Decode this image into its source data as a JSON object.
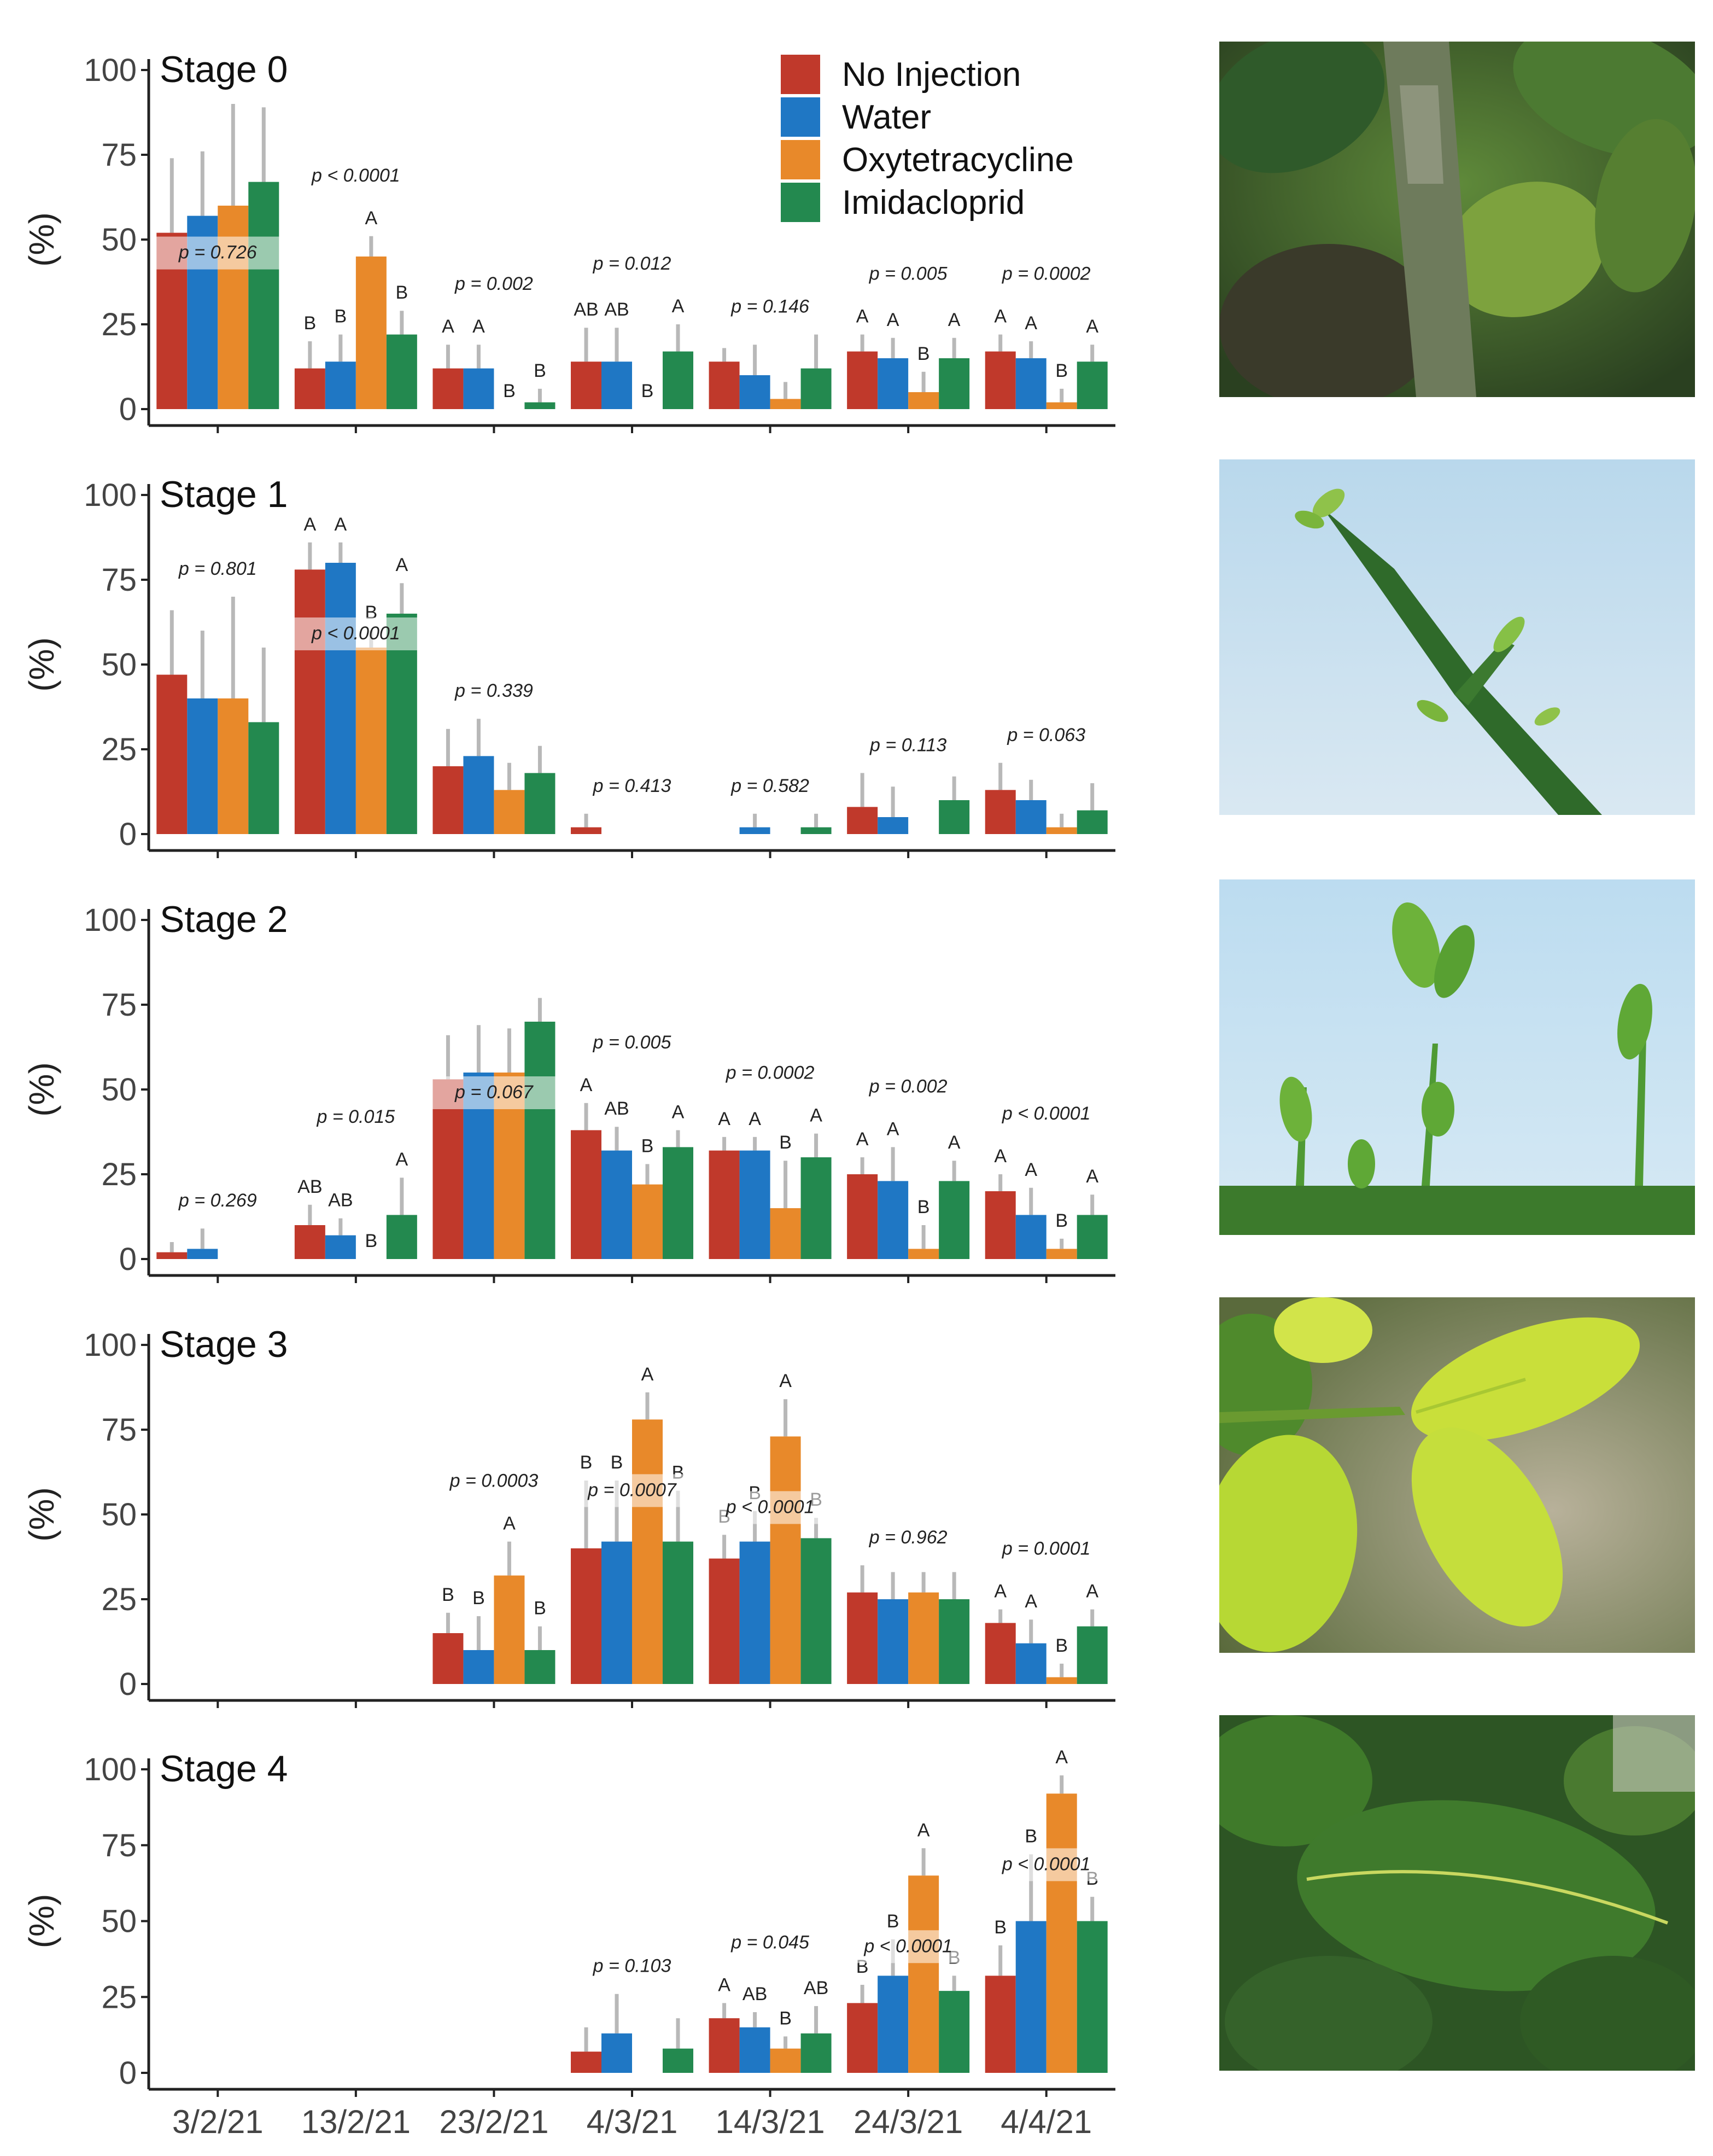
{
  "figure": {
    "ylabel": "(%)",
    "y_ticks": [
      "0",
      "25",
      "50",
      "75",
      "100"
    ],
    "dates": [
      "3/2/21",
      "13/2/21",
      "23/2/21",
      "4/3/21",
      "14/3/21",
      "24/3/21",
      "4/4/21"
    ]
  },
  "legend": [
    {
      "label": "No Injection",
      "color": "#c0392b"
    },
    {
      "label": "Water",
      "color": "#1f77c4"
    },
    {
      "label": "Oxytetracycline",
      "color": "#e8892a"
    },
    {
      "label": "Imidacloprid",
      "color": "#23894f"
    }
  ],
  "chart_data": [
    {
      "type": "bar",
      "title": "Stage 0",
      "ylabel": "(%)",
      "ylim": [
        0,
        100
      ],
      "categories": [
        "3/2/21",
        "13/2/21",
        "23/2/21",
        "4/3/21",
        "14/3/21",
        "24/3/21",
        "4/4/21"
      ],
      "series": [
        {
          "name": "No Injection",
          "values": [
            52,
            12,
            12,
            14,
            14,
            17,
            17
          ],
          "errors": [
            74,
            20,
            19,
            24,
            18,
            22,
            22
          ]
        },
        {
          "name": "Water",
          "values": [
            57,
            14,
            12,
            14,
            10,
            15,
            15
          ],
          "errors": [
            76,
            22,
            19,
            24,
            19,
            21,
            20
          ]
        },
        {
          "name": "Oxytetracycline",
          "values": [
            60,
            45,
            0,
            0,
            3,
            5,
            2
          ],
          "errors": [
            90,
            51,
            0,
            0,
            8,
            11,
            6
          ]
        },
        {
          "name": "Imidacloprid",
          "values": [
            67,
            22,
            2,
            17,
            12,
            15,
            14
          ],
          "errors": [
            89,
            29,
            6,
            25,
            22,
            21,
            19
          ]
        }
      ],
      "pvalues": [
        "p = 0.726",
        "p < 0.0001",
        "p = 0.002",
        "p = 0.012",
        "p = 0.146",
        "p = 0.005",
        "p = 0.0002"
      ],
      "letters": [
        [
          "",
          "",
          "",
          ""
        ],
        [
          "B",
          "B",
          "A",
          "B"
        ],
        [
          "A",
          "A",
          "B",
          "B"
        ],
        [
          "AB",
          "AB",
          "B",
          "A"
        ],
        [
          "",
          "",
          "",
          ""
        ],
        [
          "A",
          "A",
          "B",
          "A"
        ],
        [
          "A",
          "A",
          "B",
          "A"
        ]
      ]
    },
    {
      "type": "bar",
      "title": "Stage 1",
      "ylabel": "(%)",
      "ylim": [
        0,
        100
      ],
      "categories": [
        "3/2/21",
        "13/2/21",
        "23/2/21",
        "4/3/21",
        "14/3/21",
        "24/3/21",
        "4/4/21"
      ],
      "series": [
        {
          "name": "No Injection",
          "values": [
            47,
            78,
            20,
            2,
            0,
            8,
            13
          ],
          "errors": [
            66,
            86,
            31,
            6,
            0,
            18,
            21
          ]
        },
        {
          "name": "Water",
          "values": [
            40,
            80,
            23,
            0,
            2,
            5,
            10
          ],
          "errors": [
            60,
            86,
            34,
            0,
            6,
            14,
            16
          ]
        },
        {
          "name": "Oxytetracycline",
          "values": [
            40,
            55,
            13,
            0,
            0,
            0,
            2
          ],
          "errors": [
            70,
            60,
            21,
            0,
            0,
            0,
            6
          ]
        },
        {
          "name": "Imidacloprid",
          "values": [
            33,
            65,
            18,
            0,
            2,
            10,
            7
          ],
          "errors": [
            55,
            74,
            26,
            0,
            6,
            17,
            15
          ]
        }
      ],
      "pvalues": [
        "p = 0.801",
        "p < 0.0001",
        "p = 0.339",
        "p = 0.413",
        "p = 0.582",
        "p = 0.113",
        "p = 0.063"
      ],
      "letters": [
        [
          "",
          "",
          "",
          ""
        ],
        [
          "A",
          "A",
          "B",
          "A"
        ],
        [
          "",
          "",
          "",
          ""
        ],
        [
          "",
          "",
          "",
          ""
        ],
        [
          "",
          "",
          "",
          ""
        ],
        [
          "",
          "",
          "",
          ""
        ],
        [
          "",
          "",
          "",
          ""
        ]
      ]
    },
    {
      "type": "bar",
      "title": "Stage 2",
      "ylabel": "(%)",
      "ylim": [
        0,
        100
      ],
      "categories": [
        "3/2/21",
        "13/2/21",
        "23/2/21",
        "4/3/21",
        "14/3/21",
        "24/3/21",
        "4/4/21"
      ],
      "series": [
        {
          "name": "No Injection",
          "values": [
            2,
            10,
            53,
            38,
            32,
            25,
            20
          ],
          "errors": [
            5,
            16,
            66,
            46,
            36,
            30,
            25
          ]
        },
        {
          "name": "Water",
          "values": [
            3,
            7,
            55,
            32,
            32,
            23,
            13
          ],
          "errors": [
            9,
            12,
            69,
            39,
            36,
            33,
            21
          ]
        },
        {
          "name": "Oxytetracycline",
          "values": [
            0,
            0,
            55,
            22,
            15,
            3,
            3
          ],
          "errors": [
            0,
            0,
            68,
            28,
            29,
            10,
            6
          ]
        },
        {
          "name": "Imidacloprid",
          "values": [
            0,
            13,
            70,
            33,
            30,
            23,
            13
          ],
          "errors": [
            0,
            24,
            77,
            38,
            37,
            29,
            19
          ]
        }
      ],
      "pvalues": [
        "p = 0.269",
        "p = 0.015",
        "p = 0.067",
        "p = 0.005",
        "p = 0.0002",
        "p = 0.002",
        "p < 0.0001"
      ],
      "letters": [
        [
          "",
          "",
          "",
          ""
        ],
        [
          "AB",
          "AB",
          "B",
          "A"
        ],
        [
          "",
          "",
          "",
          ""
        ],
        [
          "A",
          "AB",
          "B",
          "A"
        ],
        [
          "A",
          "A",
          "B",
          "A"
        ],
        [
          "A",
          "A",
          "B",
          "A"
        ],
        [
          "A",
          "A",
          "B",
          "A"
        ]
      ]
    },
    {
      "type": "bar",
      "title": "Stage 3",
      "ylabel": "(%)",
      "ylim": [
        0,
        100
      ],
      "categories": [
        "3/2/21",
        "13/2/21",
        "23/2/21",
        "4/3/21",
        "14/3/21",
        "24/3/21",
        "4/4/21"
      ],
      "series": [
        {
          "name": "No Injection",
          "values": [
            0,
            0,
            15,
            40,
            37,
            27,
            18
          ],
          "errors": [
            0,
            0,
            21,
            60,
            44,
            35,
            22
          ]
        },
        {
          "name": "Water",
          "values": [
            0,
            0,
            10,
            42,
            42,
            25,
            12
          ],
          "errors": [
            0,
            0,
            20,
            60,
            51,
            33,
            19
          ]
        },
        {
          "name": "Oxytetracycline",
          "values": [
            0,
            0,
            32,
            78,
            73,
            27,
            2
          ],
          "errors": [
            0,
            0,
            42,
            86,
            84,
            33,
            6
          ]
        },
        {
          "name": "Imidacloprid",
          "values": [
            0,
            0,
            10,
            42,
            43,
            25,
            17
          ],
          "errors": [
            0,
            0,
            17,
            57,
            49,
            33,
            22
          ]
        }
      ],
      "pvalues": [
        "",
        "",
        "p = 0.0003",
        "p = 0.0007",
        "p < 0.0001",
        "p = 0.962",
        "p = 0.0001"
      ],
      "letters": [
        [
          "",
          "",
          "",
          ""
        ],
        [
          "",
          "",
          "",
          ""
        ],
        [
          "B",
          "B",
          "A",
          "B"
        ],
        [
          "B",
          "B",
          "A",
          "B"
        ],
        [
          "B",
          "B",
          "A",
          "B"
        ],
        [
          "",
          "",
          "",
          ""
        ],
        [
          "A",
          "A",
          "B",
          "A"
        ]
      ]
    },
    {
      "type": "bar",
      "title": "Stage 4",
      "ylabel": "(%)",
      "ylim": [
        0,
        100
      ],
      "categories": [
        "3/2/21",
        "13/2/21",
        "23/2/21",
        "4/3/21",
        "14/3/21",
        "24/3/21",
        "4/4/21"
      ],
      "series": [
        {
          "name": "No Injection",
          "values": [
            0,
            0,
            0,
            7,
            18,
            23,
            32
          ],
          "errors": [
            0,
            0,
            0,
            15,
            23,
            29,
            42
          ]
        },
        {
          "name": "Water",
          "values": [
            0,
            0,
            0,
            13,
            15,
            32,
            50
          ],
          "errors": [
            0,
            0,
            0,
            26,
            20,
            44,
            72
          ]
        },
        {
          "name": "Oxytetracycline",
          "values": [
            0,
            0,
            0,
            0,
            8,
            65,
            92
          ],
          "errors": [
            0,
            0,
            0,
            0,
            12,
            74,
            98
          ]
        },
        {
          "name": "Imidacloprid",
          "values": [
            0,
            0,
            0,
            8,
            13,
            27,
            50
          ],
          "errors": [
            0,
            0,
            0,
            18,
            22,
            32,
            58
          ]
        }
      ],
      "pvalues": [
        "",
        "",
        "",
        "p = 0.103",
        "p = 0.045",
        "p < 0.0001",
        "p < 0.0001"
      ],
      "letters": [
        [
          "",
          "",
          "",
          ""
        ],
        [
          "",
          "",
          "",
          ""
        ],
        [
          "",
          "",
          "",
          ""
        ],
        [
          "",
          "",
          "",
          ""
        ],
        [
          "A",
          "AB",
          "B",
          "AB"
        ],
        [
          "B",
          "B",
          "A",
          "B"
        ],
        [
          "B",
          "B",
          "A",
          "B"
        ]
      ]
    }
  ]
}
